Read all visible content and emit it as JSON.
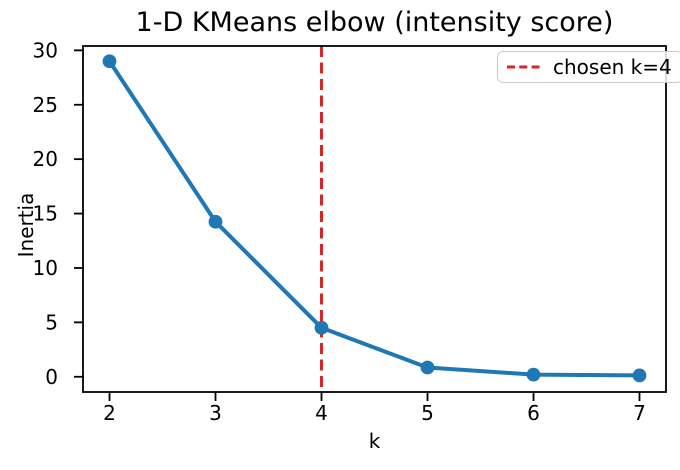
{
  "figure": {
    "background": "#ffffff"
  },
  "chart_data": {
    "type": "line",
    "title": "1-D KMeans elbow (intensity score)",
    "xlabel": "k",
    "ylabel": "Inertia",
    "x": [
      2,
      3,
      4,
      5,
      6,
      7
    ],
    "series": [
      {
        "name": "inertia",
        "values": [
          29.0,
          14.25,
          4.5,
          0.85,
          0.2,
          0.12
        ],
        "color": "#1f77b4",
        "marker": "circle"
      }
    ],
    "x_ticks": [
      "2",
      "3",
      "4",
      "5",
      "6",
      "7"
    ],
    "y_ticks": [
      "0",
      "5",
      "10",
      "15",
      "20",
      "25",
      "30"
    ],
    "x_tick_values": [
      2,
      3,
      4,
      5,
      6,
      7
    ],
    "y_tick_values": [
      0,
      5,
      10,
      15,
      20,
      25,
      30
    ],
    "xlim": [
      1.75,
      7.25
    ],
    "ylim": [
      -1.4,
      30.4
    ],
    "grid": false,
    "vline": {
      "x": 4,
      "color": "#d62728",
      "style": "dashed"
    },
    "legend": {
      "position": "upper right",
      "entries": [
        {
          "label": "chosen k=4",
          "color": "#d62728",
          "style": "dashed"
        }
      ]
    },
    "axis_color": "#000000"
  }
}
